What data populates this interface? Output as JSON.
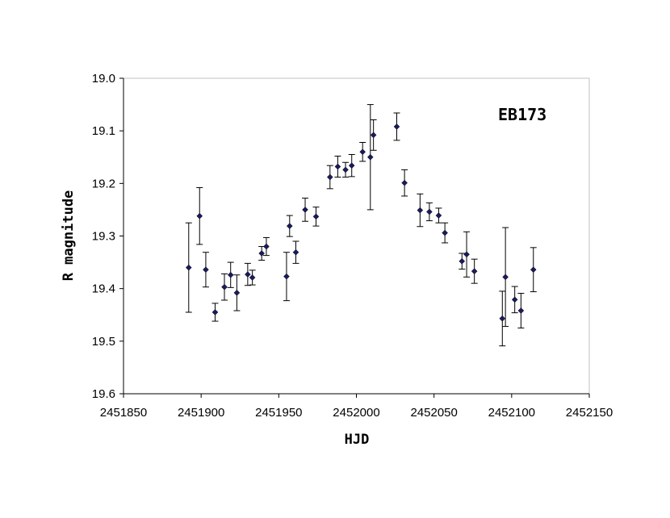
{
  "chart_data": {
    "type": "scatter",
    "title": "",
    "annotation": "EB173",
    "xlabel": "HJD",
    "ylabel": "R magnitude",
    "xlim": [
      2451850,
      2452150
    ],
    "ylim": [
      19.0,
      19.6
    ],
    "y_inverted": true,
    "x_ticks": [
      "2451850",
      "2451900",
      "2451950",
      "2452000",
      "2452050",
      "2452100",
      "2452150"
    ],
    "y_ticks": [
      "19.0",
      "19.1",
      "19.2",
      "19.3",
      "19.4",
      "19.5",
      "19.6"
    ],
    "grid": false,
    "marker_color": "#1a1a5e",
    "points": [
      {
        "x": 2451892,
        "y": 19.36,
        "err_low": 19.275,
        "err_high": 19.445
      },
      {
        "x": 2451899,
        "y": 19.262,
        "err_low": 19.208,
        "err_high": 19.316
      },
      {
        "x": 2451903,
        "y": 19.364,
        "err_low": 19.331,
        "err_high": 19.397
      },
      {
        "x": 2451909,
        "y": 19.445,
        "err_low": 19.428,
        "err_high": 19.462
      },
      {
        "x": 2451915,
        "y": 19.397,
        "err_low": 19.372,
        "err_high": 19.422
      },
      {
        "x": 2451919,
        "y": 19.374,
        "err_low": 19.35,
        "err_high": 19.398
      },
      {
        "x": 2451923,
        "y": 19.408,
        "err_low": 19.374,
        "err_high": 19.442
      },
      {
        "x": 2451930,
        "y": 19.373,
        "err_low": 19.352,
        "err_high": 19.394
      },
      {
        "x": 2451933,
        "y": 19.379,
        "err_low": 19.365,
        "err_high": 19.393
      },
      {
        "x": 2451939,
        "y": 19.333,
        "err_low": 19.32,
        "err_high": 19.346
      },
      {
        "x": 2451942,
        "y": 19.32,
        "err_low": 19.303,
        "err_high": 19.337
      },
      {
        "x": 2451955,
        "y": 19.377,
        "err_low": 19.331,
        "err_high": 19.423
      },
      {
        "x": 2451957,
        "y": 19.281,
        "err_low": 19.261,
        "err_high": 19.301
      },
      {
        "x": 2451961,
        "y": 19.331,
        "err_low": 19.31,
        "err_high": 19.352
      },
      {
        "x": 2451967,
        "y": 19.25,
        "err_low": 19.228,
        "err_high": 19.272
      },
      {
        "x": 2451974,
        "y": 19.263,
        "err_low": 19.245,
        "err_high": 19.281
      },
      {
        "x": 2451983,
        "y": 19.188,
        "err_low": 19.166,
        "err_high": 19.21
      },
      {
        "x": 2451988,
        "y": 19.168,
        "err_low": 19.148,
        "err_high": 19.188
      },
      {
        "x": 2451993,
        "y": 19.174,
        "err_low": 19.16,
        "err_high": 19.188
      },
      {
        "x": 2451997,
        "y": 19.166,
        "err_low": 19.145,
        "err_high": 19.187
      },
      {
        "x": 2452004,
        "y": 19.14,
        "err_low": 19.122,
        "err_high": 19.158
      },
      {
        "x": 2452009,
        "y": 19.15,
        "err_low": 19.05,
        "err_high": 19.25
      },
      {
        "x": 2452011,
        "y": 19.108,
        "err_low": 19.079,
        "err_high": 19.137
      },
      {
        "x": 2452026,
        "y": 19.092,
        "err_low": 19.066,
        "err_high": 19.118
      },
      {
        "x": 2452031,
        "y": 19.199,
        "err_low": 19.174,
        "err_high": 19.224
      },
      {
        "x": 2452041,
        "y": 19.251,
        "err_low": 19.22,
        "err_high": 19.282
      },
      {
        "x": 2452047,
        "y": 19.254,
        "err_low": 19.237,
        "err_high": 19.271
      },
      {
        "x": 2452053,
        "y": 19.261,
        "err_low": 19.247,
        "err_high": 19.275
      },
      {
        "x": 2452057,
        "y": 19.294,
        "err_low": 19.275,
        "err_high": 19.313
      },
      {
        "x": 2452068,
        "y": 19.348,
        "err_low": 19.333,
        "err_high": 19.363
      },
      {
        "x": 2452071,
        "y": 19.335,
        "err_low": 19.292,
        "err_high": 19.378
      },
      {
        "x": 2452076,
        "y": 19.367,
        "err_low": 19.344,
        "err_high": 19.39
      },
      {
        "x": 2452094,
        "y": 19.457,
        "err_low": 19.405,
        "err_high": 19.509
      },
      {
        "x": 2452096,
        "y": 19.378,
        "err_low": 19.284,
        "err_high": 19.472
      },
      {
        "x": 2452102,
        "y": 19.421,
        "err_low": 19.396,
        "err_high": 19.446
      },
      {
        "x": 2452106,
        "y": 19.442,
        "err_low": 19.409,
        "err_high": 19.475
      },
      {
        "x": 2452114,
        "y": 19.364,
        "err_low": 19.322,
        "err_high": 19.406
      }
    ]
  }
}
